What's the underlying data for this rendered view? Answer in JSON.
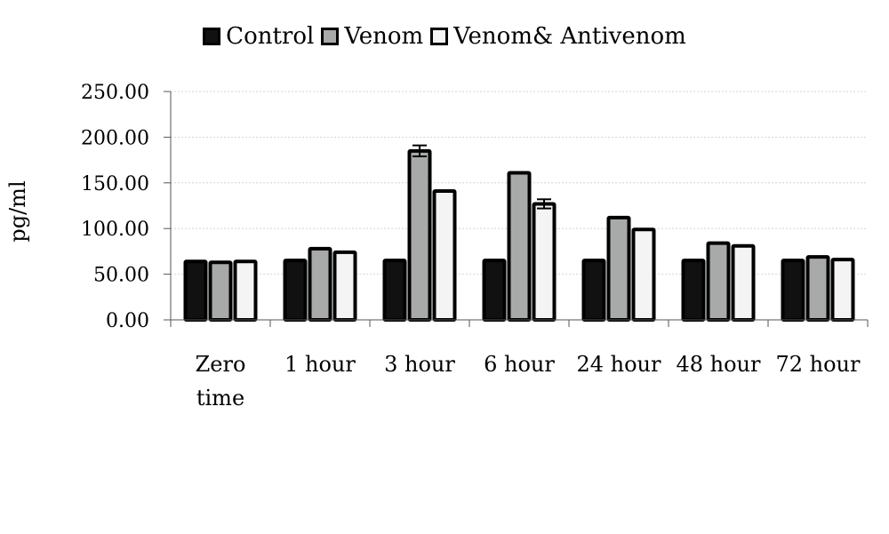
{
  "chart_data": {
    "type": "bar",
    "title": "",
    "xlabel": "",
    "ylabel": "pg/ml",
    "ylim": [
      0,
      250
    ],
    "yticks": [
      "0.00",
      "50.00",
      "100.00",
      "150.00",
      "200.00",
      "250.00"
    ],
    "ytick_values": [
      0,
      50,
      100,
      150,
      200,
      250
    ],
    "grid": true,
    "legend_position": "top-center",
    "categories": [
      [
        "Zero",
        "time"
      ],
      [
        "1 hour"
      ],
      [
        "3 hour"
      ],
      [
        "6  hour"
      ],
      [
        "24 hour"
      ],
      [
        "48 hour"
      ],
      [
        "72 hour"
      ]
    ],
    "series": [
      {
        "name": "Control",
        "color": "#111111",
        "values": [
          64,
          65,
          65,
          65,
          65,
          65,
          65
        ],
        "errors": [
          0,
          0,
          0,
          0,
          0,
          0,
          0
        ]
      },
      {
        "name": "Venom",
        "color": "#a7aaa8",
        "values": [
          63,
          78,
          185,
          161,
          112,
          84,
          69
        ],
        "errors": [
          0,
          0,
          6,
          0,
          0,
          0,
          0
        ]
      },
      {
        "name": "Venom& Antivenom",
        "color": "#f4f4f4",
        "values": [
          64,
          74,
          141,
          127,
          99,
          81,
          66
        ],
        "errors": [
          0,
          0,
          0,
          5,
          0,
          0,
          0
        ]
      }
    ]
  }
}
